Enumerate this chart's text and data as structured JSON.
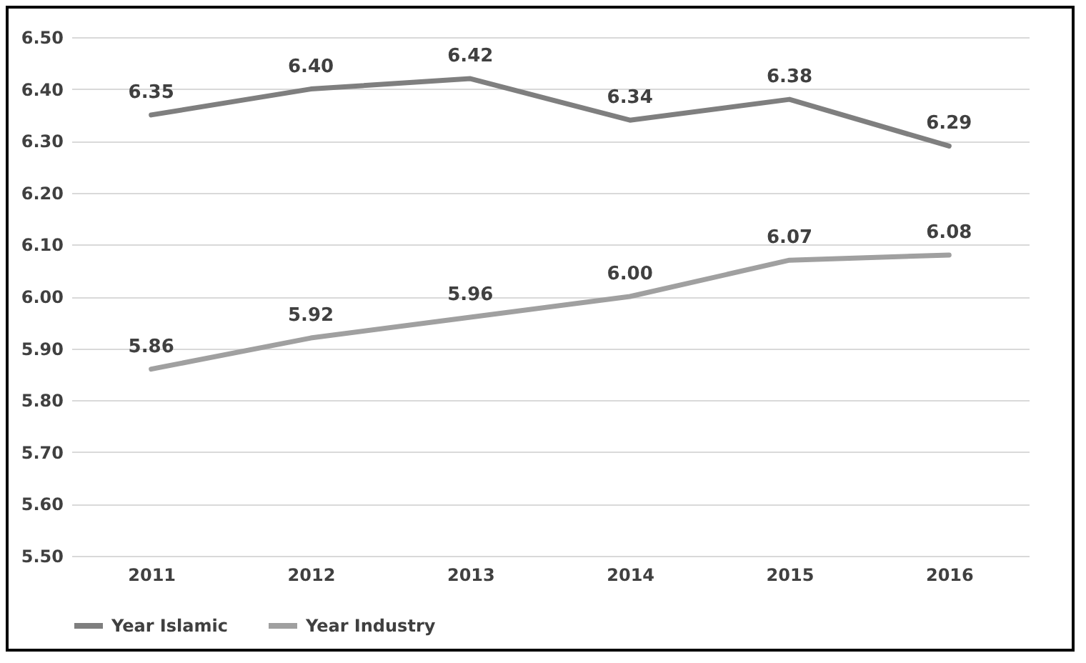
{
  "chart_data": {
    "type": "line",
    "categories": [
      "2011",
      "2012",
      "2013",
      "2014",
      "2015",
      "2016"
    ],
    "series": [
      {
        "name": "Year Islamic",
        "color": "#7f7f7f",
        "values": [
          6.35,
          6.4,
          6.42,
          6.34,
          6.38,
          6.29
        ],
        "value_labels": [
          "6.35",
          "6.40",
          "6.42",
          "6.34",
          "6.38",
          "6.29"
        ]
      },
      {
        "name": "Year Industry",
        "color": "#a0a0a0",
        "values": [
          5.86,
          5.92,
          5.96,
          6.0,
          6.07,
          6.08
        ],
        "value_labels": [
          "5.86",
          "5.92",
          "5.96",
          "6.00",
          "6.07",
          "6.08"
        ]
      }
    ],
    "ylim": [
      5.5,
      6.5
    ],
    "yticks": [
      {
        "value": 5.5,
        "label": "5.50"
      },
      {
        "value": 5.6,
        "label": "5.60"
      },
      {
        "value": 5.7,
        "label": "5.70"
      },
      {
        "value": 5.8,
        "label": "5.80"
      },
      {
        "value": 5.9,
        "label": "5.90"
      },
      {
        "value": 6.0,
        "label": "6.00"
      },
      {
        "value": 6.1,
        "label": "6.10"
      },
      {
        "value": 6.2,
        "label": "6.20"
      },
      {
        "value": 6.3,
        "label": "6.30"
      },
      {
        "value": 6.4,
        "label": "6.40"
      },
      {
        "value": 6.5,
        "label": "6.50"
      }
    ],
    "grid": "y",
    "legend": "bottom",
    "marker": "none",
    "line_style": "solid"
  }
}
